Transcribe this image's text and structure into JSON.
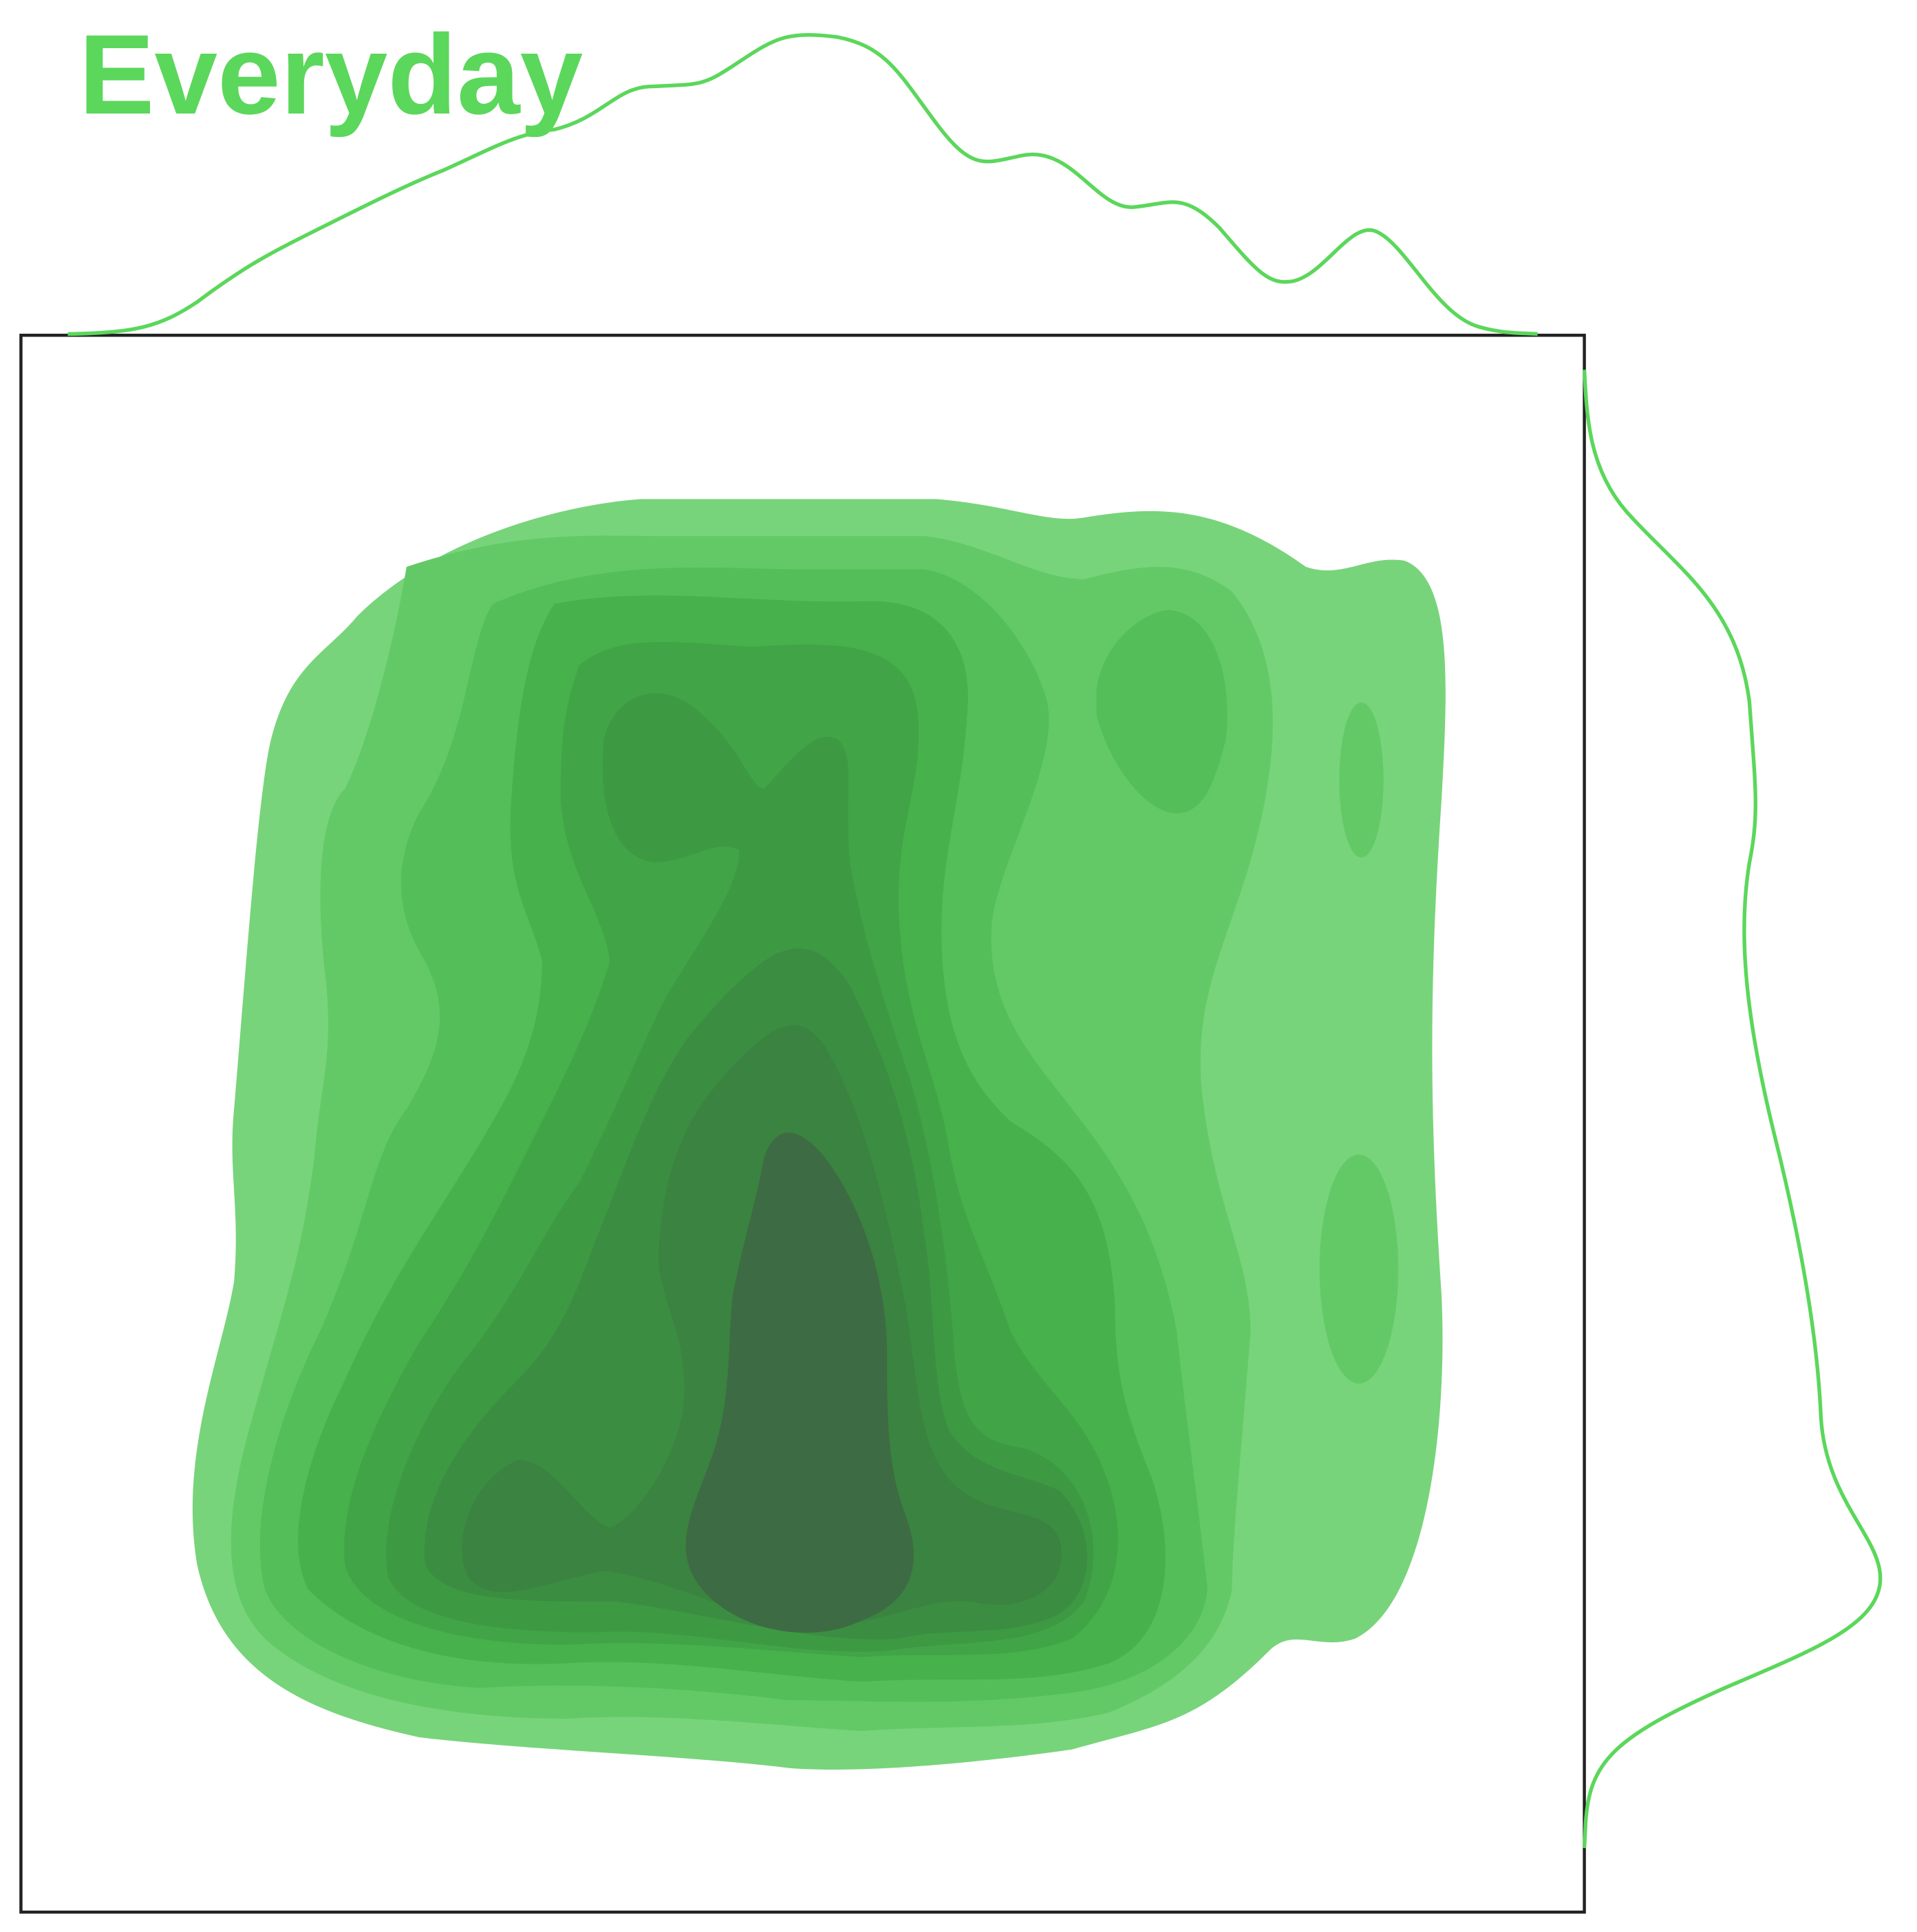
{
  "chart_data": {
    "type": "kde",
    "title": "Everyday",
    "color": "#5bd75b"
  }
}
